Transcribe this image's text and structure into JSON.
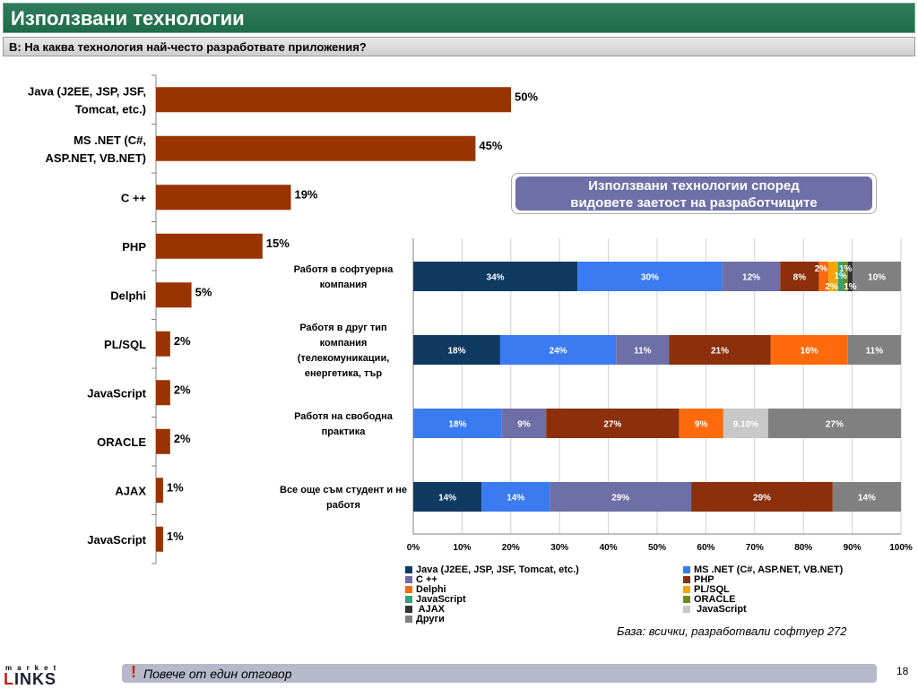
{
  "header": {
    "title": "Използвани технологии"
  },
  "question": {
    "text": "В: На каква технология най-често разработвате приложения?"
  },
  "callout": {
    "line1": "Използвани технологии според",
    "line2": "видовете заетост на разработчиците"
  },
  "base_note": "База: всички, разработвали софтуер 272",
  "footer": {
    "exclamation": "!",
    "text": "Повече от един отговор"
  },
  "page_number": "18",
  "logo": {
    "top": "market",
    "bottom_accent": "L",
    "bottom_rest": "INKS"
  },
  "colors": {
    "title_green": "#1f6b4c",
    "bar_left": "#993300",
    "java": "#0f3a62",
    "net": "#3a7bf2",
    "cpp": "#6d6fa6",
    "php": "#8b2f0d",
    "delphi": "#ff6a0c",
    "plsql": "#f5a500",
    "javascript": "#2fa279",
    "oracle": "#6f8a22",
    "ajax": "#333333",
    "javascript2": "#c8c8c8",
    "other": "#808080"
  },
  "chart_data": [
    {
      "type": "bar",
      "orientation": "horizontal",
      "categories": [
        "Java (J2EE, JSP, JSF, Tomcat, etc.)",
        "MS .NET (C#, ASP.NET, VB.NET)",
        "C ++",
        "PHP",
        "Delphi",
        "PL/SQL",
        "JavaScript",
        "ORACLE",
        "AJAX",
        "JavaScript"
      ],
      "values": [
        50,
        45,
        19,
        15,
        5,
        2,
        2,
        2,
        1,
        1
      ],
      "labels": [
        "50%",
        "45%",
        "19%",
        "15%",
        "5%",
        "2%",
        "2%",
        "2%",
        "1%",
        "1%"
      ],
      "xlim": [
        0,
        60
      ]
    },
    {
      "type": "bar",
      "orientation": "horizontal",
      "stacked": "percent",
      "categories": [
        "Работя в софтуерна компания",
        "Работя в друг тип компания (телекомуникации, енергетика, тър",
        "Работя на свободна практика",
        "Все още съм студент и не работя"
      ],
      "series": [
        {
          "name": "Java (J2EE, JSP, JSF, Tomcat, etc.)",
          "color": "java",
          "values": [
            34,
            18,
            0,
            14
          ],
          "labels": [
            "34%",
            "18%",
            "",
            "14%"
          ]
        },
        {
          "name": "MS .NET (C#, ASP.NET, VB.NET)",
          "color": "net",
          "values": [
            30,
            24,
            18,
            14
          ],
          "labels": [
            "30%",
            "24%",
            "18%",
            "14%"
          ]
        },
        {
          "name": "C ++",
          "color": "cpp",
          "values": [
            12,
            11,
            9,
            29
          ],
          "labels": [
            "12%",
            "11%",
            "9%",
            "29%"
          ]
        },
        {
          "name": "PHP",
          "color": "php",
          "values": [
            8,
            21,
            27,
            29
          ],
          "labels": [
            "8%",
            "21%",
            "27%",
            "29%"
          ]
        },
        {
          "name": "Delphi",
          "color": "delphi",
          "values": [
            2,
            16,
            9,
            0
          ],
          "labels": [
            "2%",
            "16%",
            "9%",
            ""
          ]
        },
        {
          "name": "PL/SQL",
          "color": "plsql",
          "values": [
            2,
            0,
            0,
            0
          ],
          "labels": [
            "2%",
            "",
            "",
            ""
          ]
        },
        {
          "name": "JavaScript",
          "color": "javascript",
          "values": [
            1,
            0,
            0,
            0
          ],
          "labels": [
            "1%",
            "",
            "",
            ""
          ]
        },
        {
          "name": "ORACLE",
          "color": "oracle",
          "values": [
            1,
            0,
            0,
            0
          ],
          "labels": [
            "1%",
            "",
            "",
            ""
          ]
        },
        {
          "name": " AJAX",
          "color": "ajax",
          "values": [
            1,
            0,
            0,
            0
          ],
          "labels": [
            "1%",
            "",
            "",
            ""
          ]
        },
        {
          "name": " JavaScript",
          "color": "javascript2",
          "values": [
            0,
            0,
            9.1,
            0
          ],
          "labels": [
            "",
            "",
            "9.10%",
            ""
          ]
        },
        {
          "name": "Други",
          "color": "other",
          "values": [
            10,
            11,
            27,
            14
          ],
          "labels": [
            "10%",
            "11%",
            "27%",
            "14%"
          ]
        }
      ],
      "x_ticks": [
        "0%",
        "10%",
        "20%",
        "30%",
        "40%",
        "50%",
        "60%",
        "70%",
        "80%",
        "90%",
        "100%"
      ],
      "xlim": [
        0,
        100
      ],
      "grid": true,
      "legend": "bottom"
    }
  ]
}
